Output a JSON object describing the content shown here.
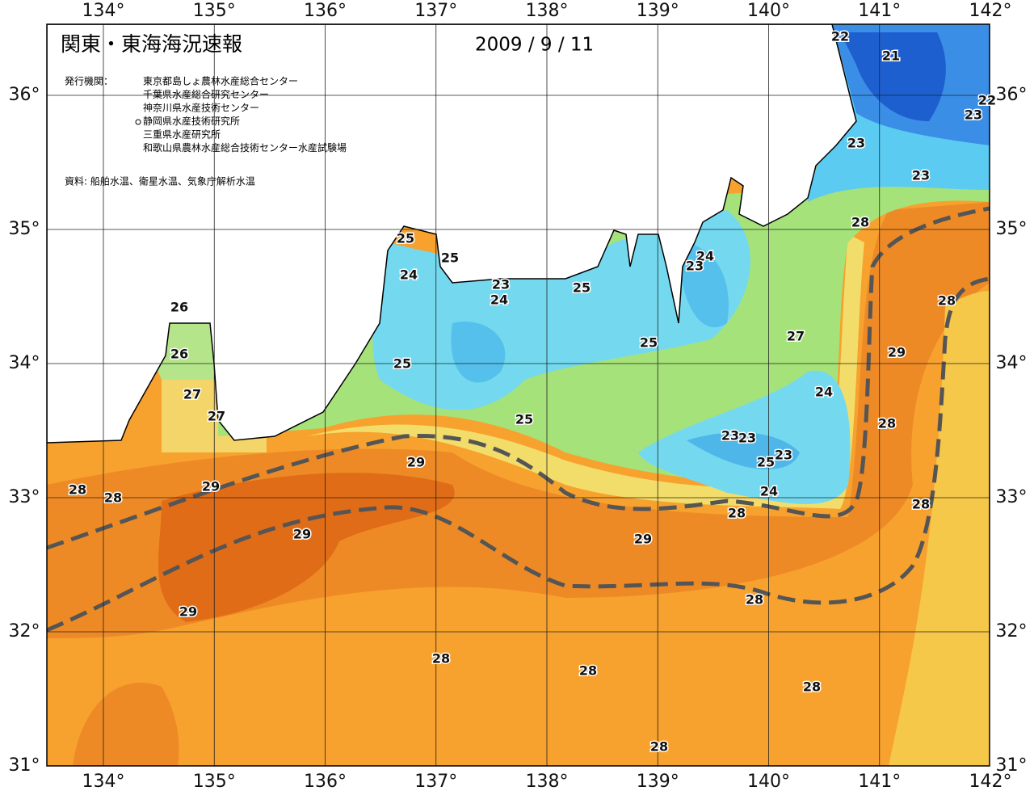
{
  "title": "関東・東海海況速報",
  "date": "2009 / 9 / 11",
  "publisher": {
    "label": "発行機関：",
    "items": [
      "東京都島しょ農林水産総合センター",
      "千葉県水産総合研究センター",
      "神奈川県水産技術センター",
      "静岡県水産技術研究所",
      "三重県水産研究所",
      "和歌山県農林水産総合技術センター水産試験場"
    ]
  },
  "source": "資料: 船舶水温、衛星水温、気象庁解析水温",
  "longitudes": [
    {
      "value": 134,
      "label": "134°"
    },
    {
      "value": 135,
      "label": "135°"
    },
    {
      "value": 136,
      "label": "136°"
    },
    {
      "value": 137,
      "label": "137°"
    },
    {
      "value": 138,
      "label": "138°"
    },
    {
      "value": 139,
      "label": "139°"
    },
    {
      "value": 140,
      "label": "140°"
    },
    {
      "value": 141,
      "label": "141°"
    },
    {
      "value": 142,
      "label": "142°"
    }
  ],
  "latitudes": [
    {
      "value": 36,
      "label": "36°"
    },
    {
      "value": 35,
      "label": "35°"
    },
    {
      "value": 34,
      "label": "34°"
    },
    {
      "value": 33,
      "label": "33°"
    },
    {
      "value": 32,
      "label": "32°"
    },
    {
      "value": 31,
      "label": "31°"
    }
  ],
  "isotherm_labels": [
    22,
    21,
    22,
    23,
    23,
    23,
    28,
    25,
    25,
    24,
    24,
    23,
    23,
    25,
    24,
    26,
    28,
    27,
    25,
    26,
    29,
    25,
    24,
    27,
    27,
    25,
    28,
    23,
    23,
    23,
    25,
    29,
    29,
    28,
    28,
    24,
    28,
    28,
    29,
    29,
    28,
    29,
    28,
    28,
    28,
    28
  ]
}
